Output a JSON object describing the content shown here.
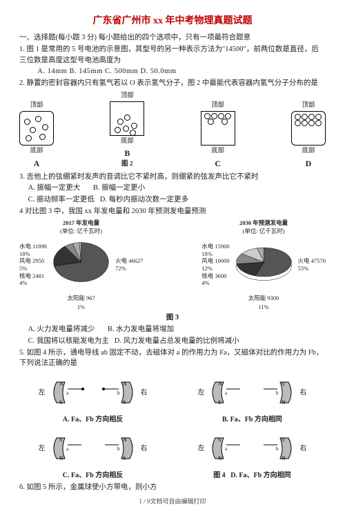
{
  "title": "广东省广州市 xx 年中考物理真题试题",
  "section1": "一、选择题(每小题 3 分) 每小题给出的四个选项中，只有一项最符合题意",
  "q1": {
    "stem": "1. 图 1 是常用的 5 号电池的示意图，其型号的另一种表示方法为\"14500\"，前两位数是直径，后三位数是高度这型号电池高度为",
    "opts": "A. 14mm    B. 145mm    C. 500mm    D. 50.0mm"
  },
  "q2": {
    "stem": "2. 静置的密封容器内只有氢气若以 O 表示氢气分子，图 2 中最能代表容器内氢气分子分布的是",
    "top": "顶部",
    "bottom": "底部",
    "A": "A",
    "B": "B",
    "C": "C",
    "D": "D",
    "figcap": "图 2"
  },
  "q3": {
    "stem": "3. 吉他上的弦绷紧时发声的音调比它不紧时高，则绷紧的弦发声比它不紧时",
    "a": "A. 振幅一定更大",
    "b": "B. 振幅一定更小",
    "c": "C. 振动频率一定更低",
    "d": "D. 每秒内振动次数一定更多"
  },
  "q4": {
    "stem": "4 对比图 3 中，我国 xx 年发电量和 2030 年预测发电量预测",
    "pie2017": {
      "title": "2017 年发电量",
      "unit": "(单位: 亿千瓦时)",
      "labels": {
        "water": "水电 11898\n18%",
        "wind": "风电 2950\n5%",
        "nuclear": "核电 2481\n4%",
        "solar": "太阳能 967\n1%",
        "fire": "火电 46627\n72%"
      },
      "slices": [
        {
          "name": "fire",
          "value": 72,
          "color": "#555"
        },
        {
          "name": "water",
          "value": 18,
          "color": "#333"
        },
        {
          "name": "wind",
          "value": 5,
          "color": "#888"
        },
        {
          "name": "nuclear",
          "value": 4,
          "color": "#aaa"
        },
        {
          "name": "solar",
          "value": 1,
          "color": "#ccc"
        }
      ]
    },
    "pie2030": {
      "title": "2030 年预测发电量",
      "unit": "(单位: 亿千瓦时)",
      "labels": {
        "water": "水电 15900\n18%",
        "wind": "风电 10000\n12%",
        "nuclear": "核电 3600\n4%",
        "solar": "太阳能 9300\n11%",
        "fire": "火电 47570\n55%"
      },
      "slices": [
        {
          "name": "fire",
          "value": 55,
          "color": "#555"
        },
        {
          "name": "water",
          "value": 18,
          "color": "#333"
        },
        {
          "name": "wind",
          "value": 12,
          "color": "#888"
        },
        {
          "name": "solar",
          "value": 11,
          "color": "#ccc"
        },
        {
          "name": "nuclear",
          "value": 4,
          "color": "#aaa"
        }
      ]
    },
    "figcap": "图 3",
    "a": "A. 火力发电量将减少",
    "b": "B. 水力发电量将增加",
    "c": "C. 我国将以核能发电为主",
    "d": "D. 风力发电量占总发电量的比例将减小"
  },
  "q5": {
    "stem": "5. 如图 4 所示，通电导线 ab 固定不动，去磁体对 a 的作用力为 Fa，又磁体对比的作用力为 Fb，下列说法正确的是",
    "left": "左",
    "right": "右",
    "N": "N",
    "S": "S",
    "a": "a",
    "b": "b",
    "A": "A.    Fa、Fb 方向相反",
    "B": "B.    Fa、Fb 方向相同",
    "C": "C.    Fa、Fb 方向相反",
    "D": "D.    Fa、Fb 方向相同",
    "figcap": "图 4"
  },
  "q6": "6. 如图 5 所示，金属球使小方带电，则小方",
  "footer": "1 / 9文档可自由编辑打印"
}
